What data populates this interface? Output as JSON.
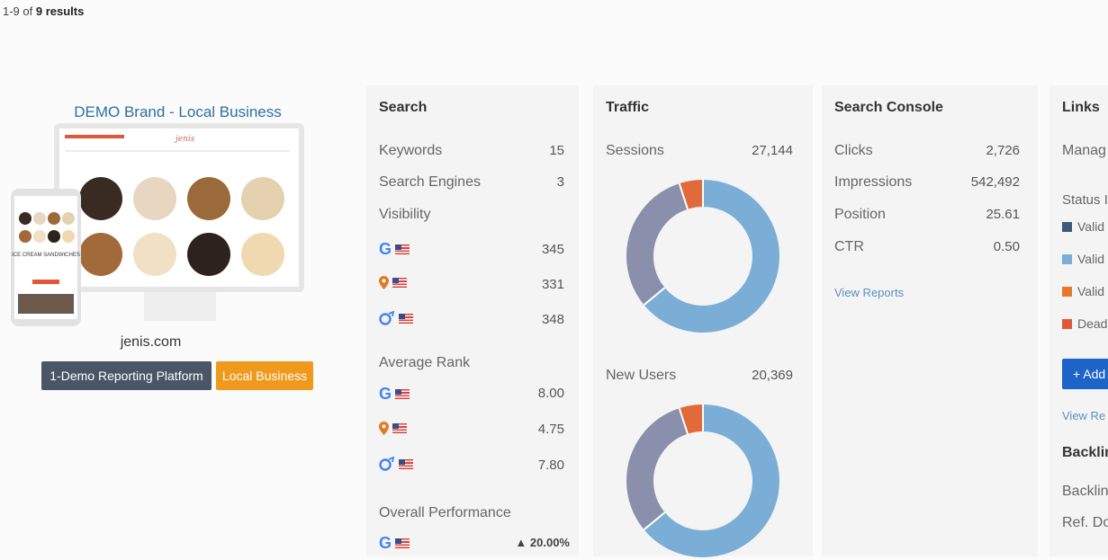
{
  "results": {
    "prefix": "1-9 of ",
    "count": "9 results"
  },
  "brand": {
    "title": "DEMO Brand - Local Business",
    "domain": "jenis.com",
    "tags": [
      "1-Demo Reporting Platform",
      "Local Business"
    ],
    "mockup_text": "ICE CREAM SANDWICHES"
  },
  "search": {
    "title": "Search",
    "keywords_label": "Keywords",
    "keywords_value": "15",
    "engines_label": "Search Engines",
    "engines_value": "3",
    "visibility_label": "Visibility",
    "visibility": [
      "345",
      "331",
      "348"
    ],
    "avg_rank_label": "Average Rank",
    "avg_rank": [
      "8.00",
      "4.75",
      "7.80"
    ],
    "overall_label": "Overall Performance",
    "overall_value": "▲ 20.00%"
  },
  "traffic": {
    "title": "Traffic",
    "sessions_label": "Sessions",
    "sessions_value": "27,144",
    "new_users_label": "New Users",
    "new_users_value": "20,369",
    "donut1": [
      0.64,
      0.31,
      0.05
    ],
    "donut2": [
      0.64,
      0.31,
      0.05
    ],
    "colors": [
      "#7aaed6",
      "#8a8fab",
      "#e06a3a"
    ]
  },
  "console": {
    "title": "Search Console",
    "rows": [
      {
        "label": "Clicks",
        "value": "2,726"
      },
      {
        "label": "Impressions",
        "value": "542,492"
      },
      {
        "label": "Position",
        "value": "25.61"
      },
      {
        "label": "CTR",
        "value": "0.50"
      }
    ],
    "view_reports": "View Reports"
  },
  "links": {
    "title": "Links",
    "manage": "Manag",
    "status": "Status I",
    "legend": [
      {
        "label": "Valid",
        "color": "#3d5a7a"
      },
      {
        "label": "Valid",
        "color": "#7aaed6"
      },
      {
        "label": "Valid",
        "color": "#e8772e"
      },
      {
        "label": "Dead",
        "color": "#e0583a"
      }
    ],
    "add_button": "+ Add",
    "view_reports": "View Re",
    "backlinks_title": "Backlin",
    "backlinks": "Backlin",
    "ref_domains": "Ref. Do"
  }
}
